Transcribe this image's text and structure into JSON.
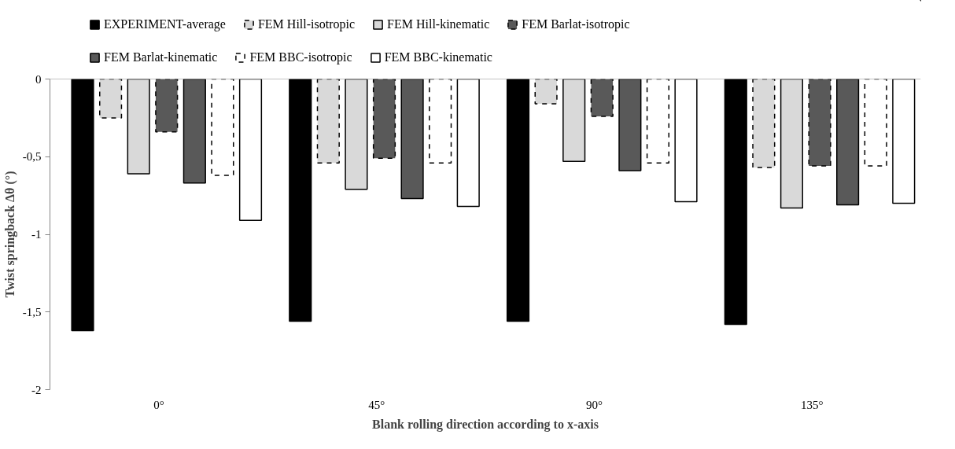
{
  "chart_data": {
    "type": "bar",
    "xlabel": "Blank rolling direction according to x-axis",
    "ylabel": "Twist springback Δθ (°)",
    "categories": [
      "0°",
      "45°",
      "90°",
      "135°"
    ],
    "ylim": [
      -2,
      0
    ],
    "yticks": [
      {
        "value": -2,
        "label": "-2"
      },
      {
        "value": -1.5,
        "label": "-1,5"
      },
      {
        "value": -1,
        "label": "-1"
      },
      {
        "value": -0.5,
        "label": "-0,5"
      },
      {
        "value": 0,
        "label": "0"
      }
    ],
    "grid": false,
    "legend": "top",
    "series": [
      {
        "name": "EXPERIMENT-average",
        "color": "#000000",
        "line_style": "solid",
        "values": [
          -1.62,
          -1.56,
          -1.56,
          -1.58
        ]
      },
      {
        "name": "FEM Hill-isotropic",
        "color": "#d9d9d9",
        "line_style": "dashed",
        "values": [
          -0.25,
          -0.54,
          -0.16,
          -0.57
        ]
      },
      {
        "name": "FEM Hill-kinematic",
        "color": "#d9d9d9",
        "line_style": "solid",
        "values": [
          -0.61,
          -0.71,
          -0.53,
          -0.83
        ]
      },
      {
        "name": "FEM Barlat-isotropic",
        "color": "#595959",
        "line_style": "dashed",
        "values": [
          -0.34,
          -0.51,
          -0.24,
          -0.56
        ]
      },
      {
        "name": "FEM Barlat-kinematic",
        "color": "#595959",
        "line_style": "solid",
        "values": [
          -0.67,
          -0.77,
          -0.59,
          -0.81
        ]
      },
      {
        "name": "FEM BBC-isotropic",
        "color": "#ffffff",
        "line_style": "dashed",
        "values": [
          -0.62,
          -0.54,
          -0.54,
          -0.56
        ]
      },
      {
        "name": "FEM BBC-kinematic",
        "color": "#ffffff",
        "line_style": "solid",
        "values": [
          -0.91,
          -0.82,
          -0.79,
          -0.8
        ]
      }
    ]
  }
}
